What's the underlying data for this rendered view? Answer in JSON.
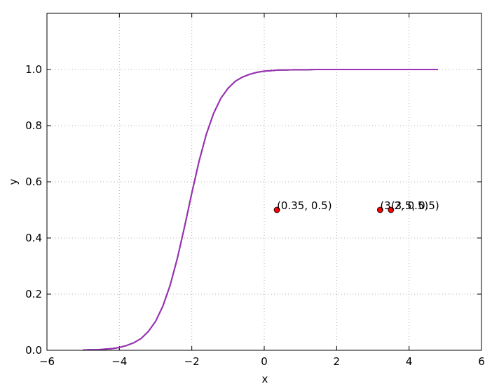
{
  "chart_data": {
    "type": "line",
    "x": [
      -5,
      -4.8,
      -4.6,
      -4.4,
      -4.2,
      -4,
      -3.8,
      -3.6,
      -3.4,
      -3.2,
      -3,
      -2.8,
      -2.6,
      -2.4,
      -2.2,
      -2,
      -1.8,
      -1.6,
      -1.4,
      -1.2,
      -1,
      -0.8,
      -0.6,
      -0.4,
      -0.2,
      0,
      0.2,
      0.4,
      0.6,
      0.8,
      1,
      1.2,
      1.4,
      1.6,
      1.8,
      2,
      2.2,
      2.4,
      2.6,
      2.8,
      3,
      3.2,
      3.4,
      3.6,
      3.8,
      4,
      4.2,
      4.4,
      4.6,
      4.8
    ],
    "series": [
      {
        "color": "#404040",
        "values": [
          0.001,
          0.002,
          0.002,
          0.004,
          0.006,
          0.01,
          0.017,
          0.027,
          0.042,
          0.067,
          0.103,
          0.157,
          0.231,
          0.327,
          0.44,
          0.56,
          0.673,
          0.769,
          0.843,
          0.897,
          0.933,
          0.958,
          0.973,
          0.983,
          0.99,
          0.994,
          0.996,
          0.998,
          0.998,
          0.999,
          0.999,
          0.999,
          1,
          1,
          1,
          1,
          1,
          1,
          1,
          1,
          1,
          1,
          1,
          1,
          1,
          1,
          1,
          1,
          1,
          1
        ]
      },
      {
        "color": "#9b30b8",
        "values": [
          0.001,
          0.002,
          0.002,
          0.004,
          0.006,
          0.01,
          0.017,
          0.027,
          0.042,
          0.067,
          0.103,
          0.157,
          0.231,
          0.327,
          0.44,
          0.56,
          0.673,
          0.769,
          0.843,
          0.897,
          0.933,
          0.958,
          0.973,
          0.983,
          0.99,
          0.994,
          0.996,
          0.998,
          0.998,
          0.999,
          0.999,
          0.999,
          1,
          1,
          1,
          1,
          1,
          1,
          1,
          1,
          1,
          1,
          1,
          1,
          1,
          1,
          1,
          1,
          1,
          1
        ]
      }
    ],
    "scatter": {
      "color": "#ff0000",
      "x": [
        0.35,
        3.2,
        3.5
      ],
      "y": [
        0.5,
        0.5,
        0.5
      ],
      "labels": [
        "(0.35, 0.5)",
        "(3.2, 0.5)",
        "(3.5, 0.5)"
      ]
    },
    "xlabel": "x",
    "ylabel": "y",
    "xlim": [
      -6,
      6
    ],
    "ylim": [
      0,
      1.2
    ],
    "xticks": [
      {
        "value": -6,
        "label": "−6"
      },
      {
        "value": -4,
        "label": "−4"
      },
      {
        "value": -2,
        "label": "−2"
      },
      0,
      2,
      4,
      6
    ],
    "yticks": [
      {
        "value": 0,
        "label": "0.0"
      },
      0.2,
      0.4,
      0.6,
      0.8,
      {
        "value": 1,
        "label": "1.0"
      }
    ],
    "grid": true
  }
}
